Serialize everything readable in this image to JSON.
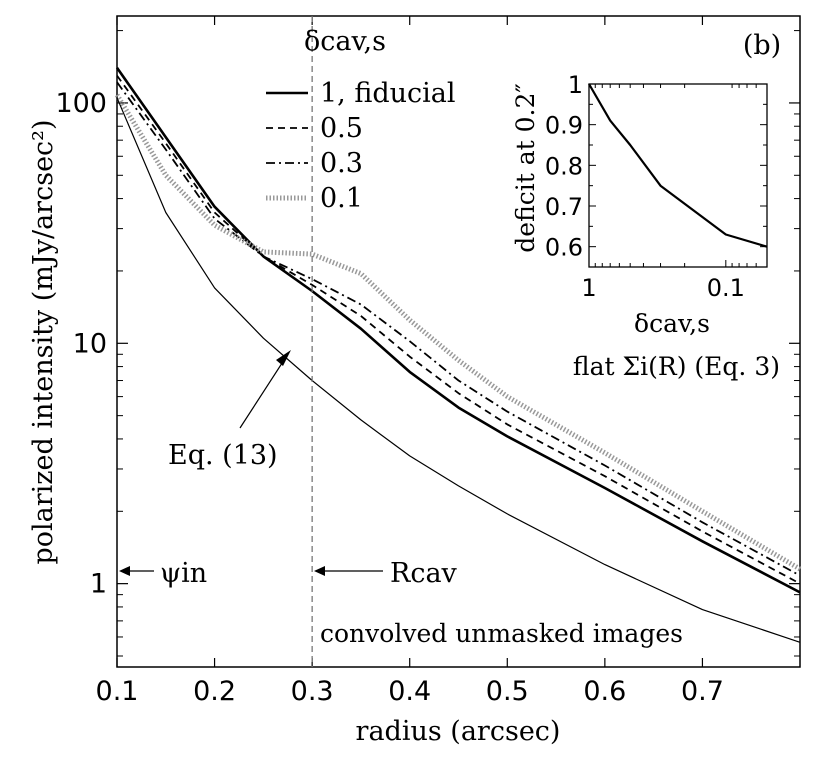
{
  "chart_data": [
    {
      "type": "line",
      "panel_label": "(b)",
      "xlabel": "radius (arcsec)",
      "ylabel": "polarized intensity (mJy/arcsec²)",
      "xscale": "linear",
      "yscale": "log",
      "xlim": [
        0.1,
        0.8
      ],
      "ylim": [
        0.45,
        230
      ],
      "x_ticks": [
        "0.1",
        "0.2",
        "0.3",
        "0.4",
        "0.5",
        "0.6",
        "0.7"
      ],
      "y_ticks": [
        "1",
        "10",
        "100"
      ],
      "legend_title": "δcav,s",
      "legend_position": "top-center",
      "series": [
        {
          "name": "1, fiducial",
          "style": "solid-thick",
          "x": [
            0.1,
            0.15,
            0.2,
            0.25,
            0.3,
            0.35,
            0.4,
            0.45,
            0.5,
            0.6,
            0.7,
            0.8
          ],
          "y": [
            140,
            72,
            37,
            23,
            16.5,
            11.5,
            7.6,
            5.4,
            4.1,
            2.5,
            1.5,
            0.92
          ]
        },
        {
          "name": "0.5",
          "style": "dashed",
          "x": [
            0.1,
            0.15,
            0.2,
            0.25,
            0.3,
            0.35,
            0.4,
            0.45,
            0.5,
            0.6,
            0.7,
            0.8
          ],
          "y": [
            130,
            68,
            35,
            23,
            17.5,
            13,
            8.8,
            6.2,
            4.6,
            2.8,
            1.65,
            1.0
          ]
        },
        {
          "name": "0.3",
          "style": "dash-dot",
          "x": [
            0.1,
            0.15,
            0.2,
            0.25,
            0.3,
            0.35,
            0.4,
            0.45,
            0.5,
            0.6,
            0.7,
            0.8
          ],
          "y": [
            122,
            64,
            33,
            23,
            18.5,
            14.5,
            10.2,
            7.0,
            5.2,
            3.1,
            1.8,
            1.08
          ]
        },
        {
          "name": "0.1",
          "style": "dotted-thick",
          "x": [
            0.1,
            0.15,
            0.2,
            0.25,
            0.3,
            0.35,
            0.4,
            0.45,
            0.5,
            0.6,
            0.7,
            0.8
          ],
          "y": [
            108,
            50,
            31,
            24,
            23.5,
            19.5,
            12.5,
            8.5,
            6.0,
            3.5,
            2.0,
            1.15
          ]
        },
        {
          "name": "Eq. (13)",
          "style": "solid-thin",
          "x": [
            0.1,
            0.15,
            0.2,
            0.25,
            0.3,
            0.35,
            0.4,
            0.45,
            0.5,
            0.6,
            0.7,
            0.8
          ],
          "y": [
            105,
            35,
            17,
            10.5,
            7.0,
            4.8,
            3.4,
            2.55,
            1.95,
            1.2,
            0.78,
            0.57
          ]
        }
      ],
      "vertical_line": {
        "x": 0.3,
        "style": "dashed"
      },
      "annotations": {
        "eq13": "Eq. (13)",
        "psi_in": "ψin",
        "r_cav": "Rcav",
        "convolved": "convolved unmasked images"
      }
    },
    {
      "type": "line",
      "panel": "inset",
      "xlabel": "δcav,s",
      "ylabel": "deficit at 0.2″",
      "xscale": "log-reversed",
      "xlim": [
        1,
        0.05
      ],
      "ylim": [
        0.55,
        1.0
      ],
      "x_ticks": [
        "1",
        "0.1"
      ],
      "y_ticks": [
        "0.6",
        "0.7",
        "0.8",
        "0.9",
        "1"
      ],
      "caption": "flat Σi(R) (Eq. 3)",
      "series": [
        {
          "name": "deficit",
          "x": [
            1,
            0.7,
            0.5,
            0.3,
            0.1,
            0.05
          ],
          "y": [
            1.0,
            0.91,
            0.85,
            0.75,
            0.63,
            0.6
          ]
        }
      ]
    }
  ]
}
